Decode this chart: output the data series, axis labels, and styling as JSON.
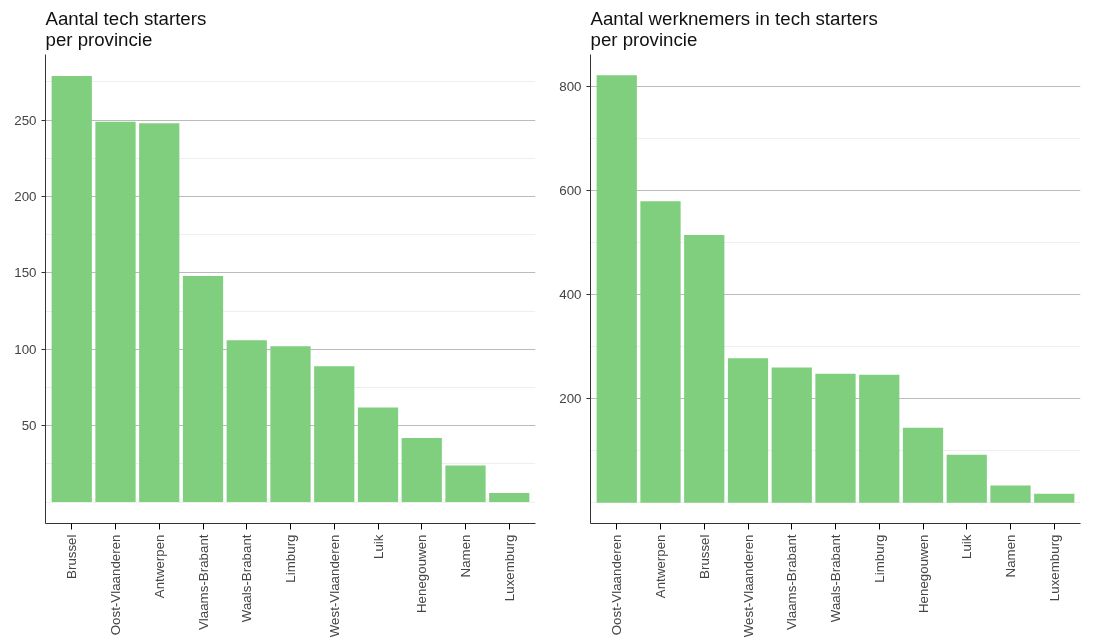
{
  "chart_data": [
    {
      "type": "bar",
      "title": "Aantal tech starters\nper provincie",
      "categories": [
        "Brussel",
        "Oost-Vlaanderen",
        "Antwerpen",
        "Vlaams-Brabant",
        "Waals-Brabant",
        "Limburg",
        "West-Vlaanderen",
        "Luik",
        "Henegouwen",
        "Namen",
        "Luxemburg"
      ],
      "values": [
        279,
        249,
        248,
        148,
        106,
        102,
        89,
        62,
        42,
        24,
        6
      ],
      "color": "#7fcf7f",
      "ylim": [
        -14,
        293
      ],
      "yticks": [
        {
          "value": 0,
          "label": null
        },
        {
          "value": 25,
          "label": null
        },
        50,
        {
          "value": 75,
          "label": null
        },
        100,
        {
          "value": 125,
          "label": null
        },
        150,
        {
          "value": 175,
          "label": null
        },
        200,
        {
          "value": 225,
          "label": null
        },
        250,
        {
          "value": 275,
          "label": null
        }
      ],
      "grid": "y"
    },
    {
      "type": "bar",
      "title": "Aantal werknemers in tech starters\n per provincie",
      "categories": [
        "Oost-Vlaanderen",
        "Antwerpen",
        "Brussel",
        "West-Vlaanderen",
        "Vlaams-Brabant",
        "Waals-Brabant",
        "Limburg",
        "Henegouwen",
        "Luik",
        "Namen",
        "Luxemburg"
      ],
      "values": [
        822,
        580,
        515,
        278,
        260,
        248,
        246,
        144,
        92,
        33,
        17
      ],
      "color": "#7fcf7f",
      "ylim": [
        -40,
        862
      ],
      "yticks": [
        {
          "value": 0,
          "label": null
        },
        {
          "value": 100,
          "label": null
        },
        200,
        {
          "value": 300,
          "label": null
        },
        400,
        {
          "value": 500,
          "label": null
        },
        600,
        {
          "value": 700,
          "label": null
        },
        800
      ],
      "grid": "y"
    }
  ]
}
